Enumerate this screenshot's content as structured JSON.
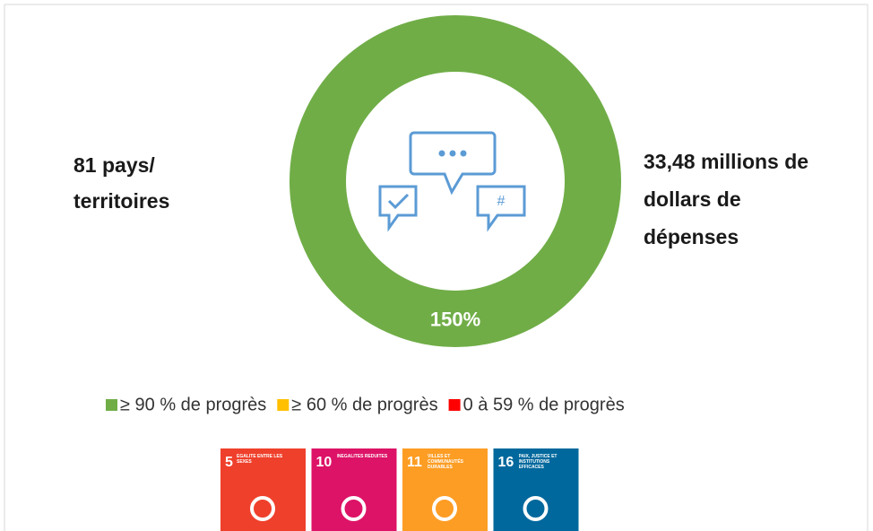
{
  "chart_data": {
    "type": "donut",
    "values": [
      150
    ],
    "value_labels": [
      "150%"
    ],
    "color": "#70ad47",
    "annotations": [
      "81 pays/",
      "territoires",
      "33,48 millions de",
      "dollars de",
      "dépenses"
    ],
    "legend": [
      {
        "name": "≥ 90 % de progrès",
        "color": "#70ad47"
      },
      {
        "name": "≥ 60 % de progrès",
        "color": "#ffc000"
      },
      {
        "name": "0 à 59 % de progrès",
        "color": "#ff0000"
      }
    ]
  },
  "sdg_icons": [
    {
      "number": 5,
      "label": "ÉGALITÉ ENTRE LES SEXES",
      "color": "#ef402b"
    },
    {
      "number": 10,
      "label": "INÉGALITÉS RÉDUITES",
      "color": "#dd1367"
    },
    {
      "number": 11,
      "label": "VILLES ET COMMUNAUTÉS DURABLES",
      "color": "#fd9d24"
    },
    {
      "number": 16,
      "label": "PAIX, JUSTICE ET INSTITUTIONS EFFICACES",
      "color": "#00689d"
    }
  ]
}
